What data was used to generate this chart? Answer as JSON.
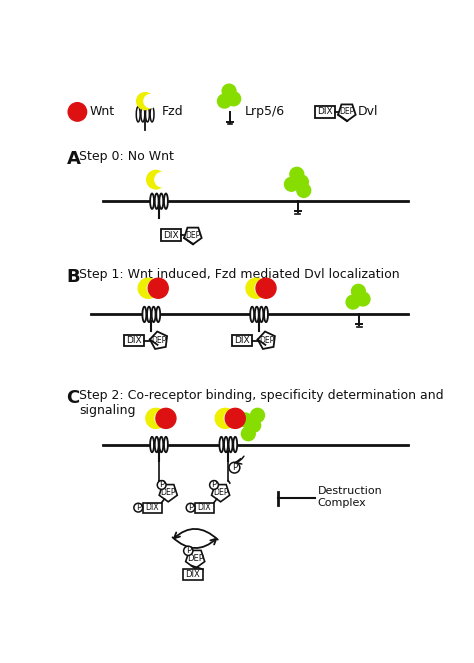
{
  "wnt_color": "#dd1111",
  "fzd_color": "#eef000",
  "lrp_color": "#88dd00",
  "bg_color": "#ffffff",
  "membrane_color": "#111111",
  "step0_text": "Step 0: No Wnt",
  "step1_text": "Step 1: Wnt induced, Fzd mediated Dvl localization",
  "step2_text": "Step 2: Co-receptor binding, specificity determination and\nsignaling",
  "legend_wnt": "Wnt",
  "legend_fzd": "Fzd",
  "legend_lrp": "Lrp5/6",
  "legend_dvl": "Dvl",
  "destruction_text": "Destruction\nComplex"
}
